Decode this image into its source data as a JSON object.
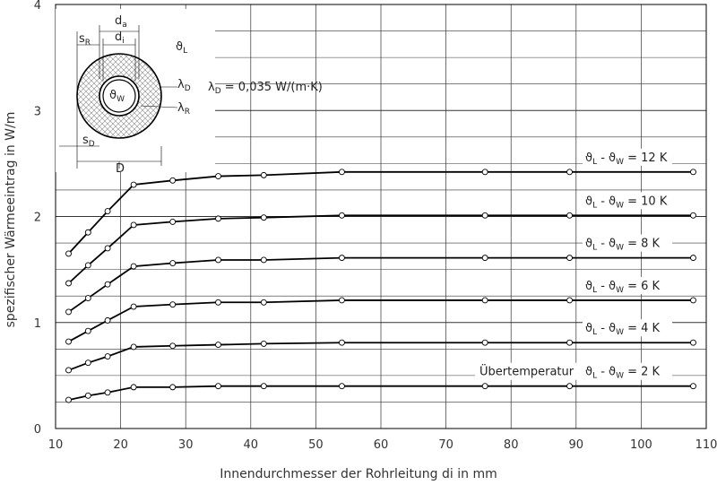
{
  "chart_data": {
    "type": "line",
    "xlabel": "Innendurchmesser der Rohrleitung  di in mm",
    "ylabel": "spezifischer Wärmeeintrag  in  W/m",
    "xlim": [
      10,
      110
    ],
    "ylim": [
      0,
      4
    ],
    "x_ticks": [
      "10",
      "20",
      "30",
      "40",
      "50",
      "60",
      "70",
      "80",
      "90",
      "100",
      "110"
    ],
    "y_ticks": [
      "0",
      "1",
      "2",
      "3",
      "4"
    ],
    "grid": true,
    "x": [
      12,
      15,
      18,
      22,
      28,
      35,
      42,
      54,
      76,
      89,
      108
    ],
    "series": [
      {
        "name": "ϑL - ϑW = 12 K",
        "values": [
          1.65,
          1.85,
          2.05,
          2.3,
          2.34,
          2.38,
          2.39,
          2.42,
          2.42,
          2.42,
          2.42
        ]
      },
      {
        "name": "ϑL - ϑW = 10 K",
        "values": [
          1.37,
          1.54,
          1.7,
          1.92,
          1.95,
          1.98,
          1.99,
          2.01,
          2.01,
          2.01,
          2.01
        ]
      },
      {
        "name": "ϑL - ϑW = 8 K",
        "values": [
          1.1,
          1.23,
          1.36,
          1.53,
          1.56,
          1.59,
          1.59,
          1.61,
          1.61,
          1.61,
          1.61
        ]
      },
      {
        "name": "ϑL - ϑW = 6 K",
        "values": [
          0.82,
          0.92,
          1.02,
          1.15,
          1.17,
          1.19,
          1.19,
          1.21,
          1.21,
          1.21,
          1.21
        ]
      },
      {
        "name": "ϑL - ϑW = 4 K",
        "values": [
          0.55,
          0.62,
          0.68,
          0.77,
          0.78,
          0.79,
          0.8,
          0.81,
          0.81,
          0.81,
          0.81
        ]
      },
      {
        "name": "ϑL - ϑW = 2 K",
        "values": [
          0.27,
          0.31,
          0.34,
          0.39,
          0.39,
          0.4,
          0.4,
          0.4,
          0.4,
          0.4,
          0.4
        ]
      }
    ],
    "series_labels": [
      {
        "a": "ϑ",
        "b": "L",
        "c": " - ϑ",
        "d": "W",
        "e": " = 12 K"
      },
      {
        "a": "ϑ",
        "b": "L",
        "c": " - ϑ",
        "d": "W",
        "e": " = 10 K"
      },
      {
        "a": "ϑ",
        "b": "L",
        "c": " - ϑ",
        "d": "W",
        "e": " = 8 K"
      },
      {
        "a": "ϑ",
        "b": "L",
        "c": " - ϑ",
        "d": "W",
        "e": " = 6 K"
      },
      {
        "a": "ϑ",
        "b": "L",
        "c": " - ϑ",
        "d": "W",
        "e": " = 4 K"
      },
      {
        "a": "ϑ",
        "b": "L",
        "c": " - ϑ",
        "d": "W",
        "e": " = 2 K"
      }
    ],
    "ubertemperatur_label": "Übertemperatur",
    "lambda_formula": {
      "sym": "λ",
      "sub": "D",
      "rest": " = 0,035 W/(m·K)"
    },
    "diagram_labels": {
      "da": "d",
      "da_sub": "a",
      "di": "d",
      "di_sub": "i",
      "sR": "s",
      "sR_sub": "R",
      "sD": "s",
      "sD_sub": "D",
      "thetaL": "ϑ",
      "thetaL_sub": "L",
      "thetaW": "ϑ",
      "thetaW_sub": "W",
      "lambdaD": "λ",
      "lambdaD_sub": "D",
      "lambdaR": "λ",
      "lambdaR_sub": "R",
      "D": "D"
    }
  },
  "colors": {
    "line": "#000000",
    "grid": "#333333",
    "marker_fill": "#ffffff",
    "text": "#333333"
  }
}
